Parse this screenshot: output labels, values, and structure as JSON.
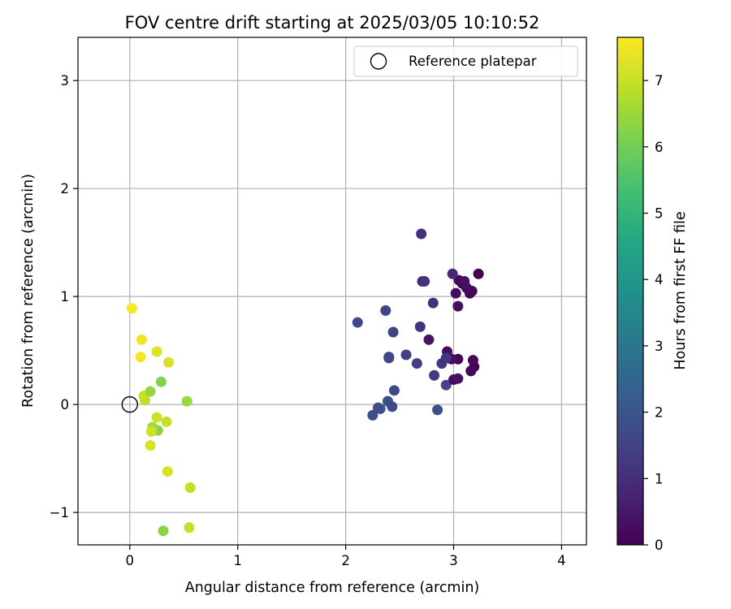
{
  "chart_data": {
    "type": "scatter",
    "title": "FOV centre drift starting at 2025/03/05 10:10:52",
    "xlabel": "Angular distance from reference (arcmin)",
    "ylabel": "Rotation from reference (arcmin)",
    "xlim": [
      -0.48,
      4.23
    ],
    "ylim": [
      -1.3,
      3.4
    ],
    "xticks": [
      0,
      1,
      2,
      3,
      4
    ],
    "yticks": [
      -1,
      0,
      1,
      2,
      3
    ],
    "xtick_labels": [
      "0",
      "1",
      "2",
      "3",
      "4"
    ],
    "ytick_labels": [
      "−1",
      "0",
      "1",
      "2",
      "3"
    ],
    "grid": true,
    "legend": {
      "placement": "top-right",
      "entries": [
        {
          "label": "Reference platepar",
          "marker": "open-circle",
          "x": 0,
          "y": 0
        }
      ]
    },
    "colorbar": {
      "label": "Hours from first FF file",
      "colormap": "viridis",
      "range": [
        0,
        7.65
      ],
      "ticks": [
        0,
        1,
        2,
        3,
        4,
        5,
        6,
        7
      ],
      "tick_labels": [
        "0",
        "1",
        "2",
        "3",
        "4",
        "5",
        "6",
        "7"
      ]
    },
    "series": [
      {
        "x": [
          3.23,
          3.15,
          3.17,
          3.05,
          3.08,
          3.12,
          3.02,
          3.04,
          3.1,
          3.19,
          3.04,
          3.16,
          3.18,
          2.94,
          2.98,
          2.93,
          3.0,
          3.04,
          2.77,
          2.99,
          2.71,
          2.7,
          2.81,
          2.73,
          2.69,
          2.89,
          2.93,
          2.82,
          2.66,
          2.56,
          2.44,
          2.37,
          2.4,
          2.4,
          2.45,
          2.3,
          2.32,
          2.25,
          2.39,
          2.43,
          2.85,
          2.11,
          0.02,
          0.11,
          0.1,
          0.25,
          0.36,
          0.14,
          0.13,
          0.19,
          0.29,
          0.53,
          0.25,
          0.34,
          0.26,
          0.21,
          0.2,
          0.19,
          0.35,
          0.56,
          0.55,
          0.31
        ],
        "y": [
          1.21,
          1.03,
          1.05,
          1.15,
          1.12,
          1.08,
          1.03,
          0.91,
          1.14,
          0.35,
          0.42,
          0.31,
          0.41,
          0.49,
          0.42,
          0.18,
          0.23,
          0.24,
          0.6,
          1.21,
          1.14,
          1.58,
          0.94,
          1.14,
          0.72,
          0.38,
          0.43,
          0.27,
          0.38,
          0.46,
          0.67,
          0.87,
          0.44,
          0.43,
          0.13,
          -0.03,
          -0.04,
          -0.1,
          0.03,
          -0.02,
          -0.05,
          0.76,
          0.89,
          0.6,
          0.44,
          0.49,
          0.39,
          0.04,
          0.08,
          0.12,
          0.21,
          0.03,
          -0.12,
          -0.16,
          -0.24,
          -0.21,
          -0.25,
          -0.38,
          -0.62,
          -0.77,
          -1.14,
          -1.17
        ],
        "hours": [
          0.0,
          0.05,
          0.1,
          0.12,
          0.18,
          0.22,
          0.25,
          0.3,
          0.35,
          0.05,
          0.1,
          0.15,
          0.2,
          0.25,
          0.3,
          1.6,
          0.25,
          0.35,
          0.4,
          0.8,
          0.9,
          1.0,
          1.05,
          1.1,
          1.15,
          1.2,
          1.2,
          1.3,
          1.4,
          1.45,
          1.5,
          1.55,
          1.6,
          1.65,
          1.7,
          1.75,
          1.8,
          1.85,
          1.9,
          1.7,
          1.8,
          1.7,
          7.6,
          7.5,
          7.55,
          7.3,
          7.2,
          6.9,
          7.0,
          6.4,
          6.2,
          6.5,
          7.1,
          7.0,
          6.3,
          6.6,
          7.05,
          7.2,
          7.2,
          7.0,
          7.0,
          6.3
        ]
      }
    ]
  }
}
